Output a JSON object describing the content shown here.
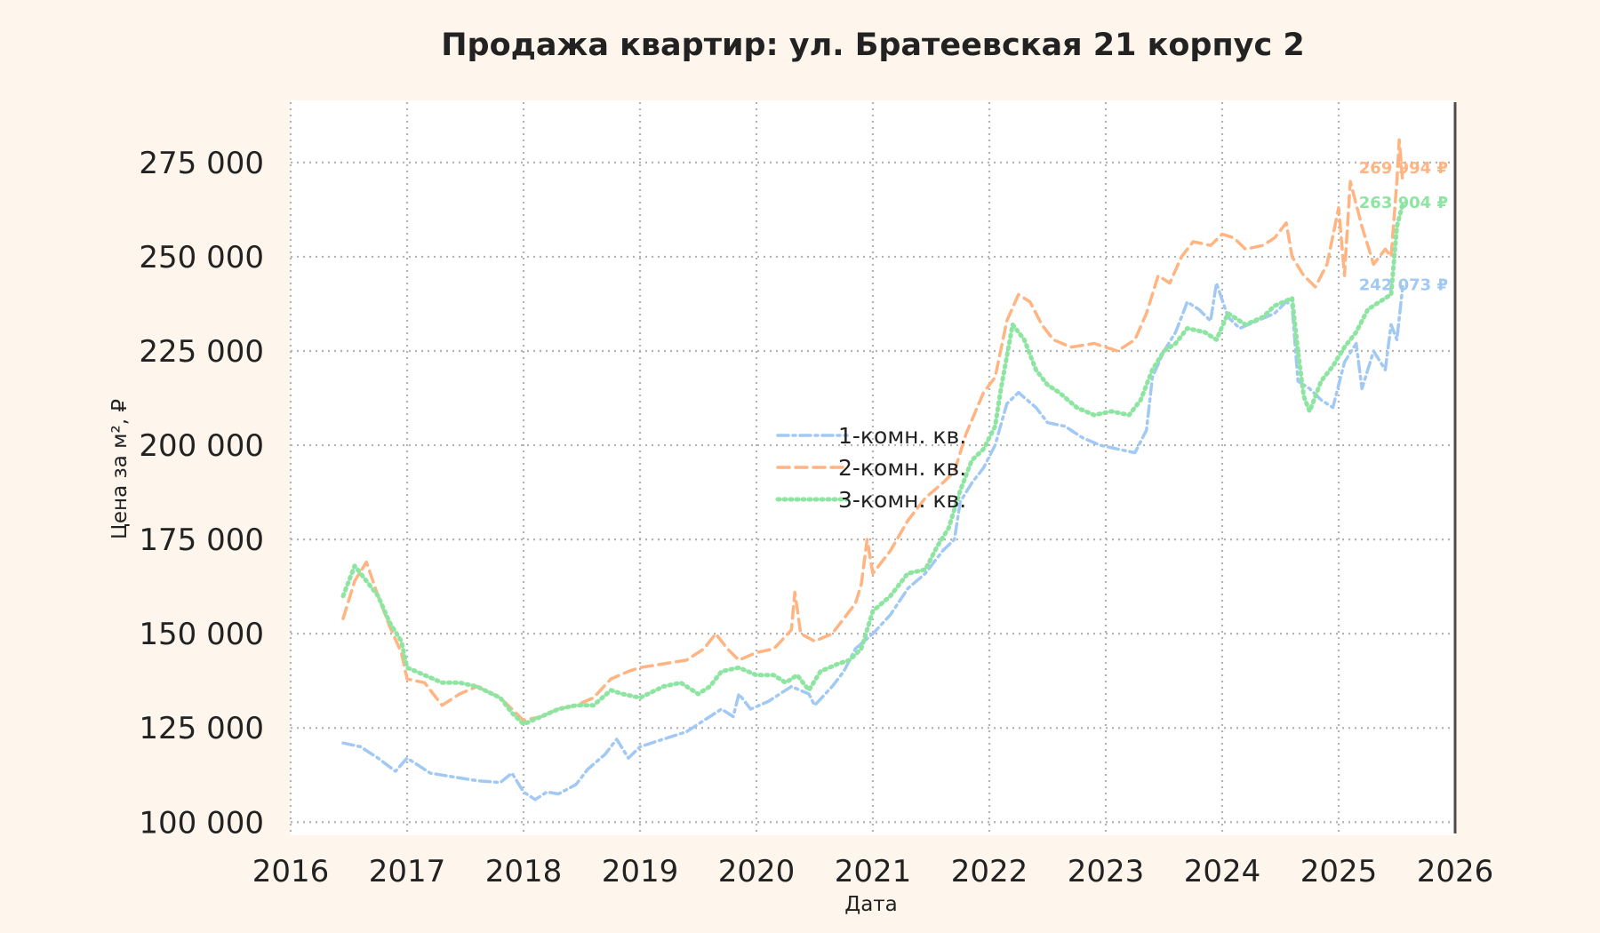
{
  "chart_data": {
    "type": "line",
    "title": "Продажа квартир: ул. Братеевская 21 корпус 2",
    "xlabel": "Дата",
    "ylabel": "Цена за м², ₽",
    "xlim": [
      2016,
      2026
    ],
    "ylim": [
      97000,
      291000
    ],
    "x_ticks": [
      "2016",
      "2017",
      "2018",
      "2019",
      "2020",
      "2021",
      "2022",
      "2023",
      "2024",
      "2025",
      "2026"
    ],
    "y_ticks": [
      "100 000",
      "125 000",
      "150 000",
      "175 000",
      "200 000",
      "225 000",
      "250 000",
      "275 000"
    ],
    "grid": true,
    "legend_position": "center",
    "series": [
      {
        "name": "1-комн. кв.",
        "color": "#a1c9f4",
        "style": "dashdot",
        "end_label": "242 073 ₽",
        "points": [
          [
            2016.45,
            121000
          ],
          [
            2016.6,
            120000
          ],
          [
            2016.75,
            117000
          ],
          [
            2016.9,
            113500
          ],
          [
            2017.0,
            117000
          ],
          [
            2017.2,
            113000
          ],
          [
            2017.4,
            112000
          ],
          [
            2017.6,
            111000
          ],
          [
            2017.8,
            110500
          ],
          [
            2017.9,
            113000
          ],
          [
            2018.0,
            108000
          ],
          [
            2018.1,
            106000
          ],
          [
            2018.2,
            108000
          ],
          [
            2018.3,
            107500
          ],
          [
            2018.45,
            110000
          ],
          [
            2018.55,
            114000
          ],
          [
            2018.7,
            118000
          ],
          [
            2018.8,
            122000
          ],
          [
            2018.9,
            117000
          ],
          [
            2019.0,
            120000
          ],
          [
            2019.2,
            122000
          ],
          [
            2019.4,
            124000
          ],
          [
            2019.55,
            127000
          ],
          [
            2019.7,
            130000
          ],
          [
            2019.8,
            128000
          ],
          [
            2019.85,
            134000
          ],
          [
            2019.95,
            130000
          ],
          [
            2020.1,
            132000
          ],
          [
            2020.3,
            136000
          ],
          [
            2020.45,
            134000
          ],
          [
            2020.5,
            131000
          ],
          [
            2020.65,
            136000
          ],
          [
            2020.75,
            140000
          ],
          [
            2020.85,
            146000
          ],
          [
            2021.0,
            150000
          ],
          [
            2021.15,
            155000
          ],
          [
            2021.3,
            162000
          ],
          [
            2021.45,
            166000
          ],
          [
            2021.6,
            172000
          ],
          [
            2021.7,
            175000
          ],
          [
            2021.75,
            185000
          ],
          [
            2021.85,
            190000
          ],
          [
            2021.95,
            194000
          ],
          [
            2022.05,
            200000
          ],
          [
            2022.15,
            211000
          ],
          [
            2022.25,
            214000
          ],
          [
            2022.4,
            210000
          ],
          [
            2022.5,
            206000
          ],
          [
            2022.65,
            205000
          ],
          [
            2022.8,
            202000
          ],
          [
            2022.95,
            200000
          ],
          [
            2023.1,
            199000
          ],
          [
            2023.25,
            198000
          ],
          [
            2023.35,
            204000
          ],
          [
            2023.4,
            218000
          ],
          [
            2023.5,
            225000
          ],
          [
            2023.6,
            230000
          ],
          [
            2023.7,
            238000
          ],
          [
            2023.8,
            236000
          ],
          [
            2023.9,
            233000
          ],
          [
            2023.95,
            243000
          ],
          [
            2024.05,
            234000
          ],
          [
            2024.15,
            231000
          ],
          [
            2024.3,
            233000
          ],
          [
            2024.45,
            235000
          ],
          [
            2024.55,
            238000
          ],
          [
            2024.6,
            237000
          ],
          [
            2024.65,
            217000
          ],
          [
            2024.75,
            215000
          ],
          [
            2024.85,
            212000
          ],
          [
            2024.95,
            210000
          ],
          [
            2025.05,
            222000
          ],
          [
            2025.15,
            227000
          ],
          [
            2025.2,
            215000
          ],
          [
            2025.3,
            225000
          ],
          [
            2025.4,
            220000
          ],
          [
            2025.45,
            232000
          ],
          [
            2025.5,
            228000
          ],
          [
            2025.55,
            242073
          ]
        ]
      },
      {
        "name": "2-комн. кв.",
        "color": "#ffb482",
        "style": "dashed",
        "end_label": "269 994 ₽",
        "points": [
          [
            2016.45,
            154000
          ],
          [
            2016.55,
            164000
          ],
          [
            2016.65,
            169000
          ],
          [
            2016.75,
            160000
          ],
          [
            2016.85,
            152000
          ],
          [
            2016.95,
            145000
          ],
          [
            2017.0,
            138000
          ],
          [
            2017.15,
            137000
          ],
          [
            2017.3,
            131000
          ],
          [
            2017.45,
            134000
          ],
          [
            2017.6,
            136000
          ],
          [
            2017.8,
            133000
          ],
          [
            2017.9,
            130000
          ],
          [
            2018.0,
            127000
          ],
          [
            2018.15,
            128000
          ],
          [
            2018.3,
            130000
          ],
          [
            2018.45,
            131000
          ],
          [
            2018.6,
            133000
          ],
          [
            2018.75,
            138000
          ],
          [
            2018.9,
            140000
          ],
          [
            2019.0,
            141000
          ],
          [
            2019.2,
            142000
          ],
          [
            2019.4,
            143000
          ],
          [
            2019.55,
            146000
          ],
          [
            2019.65,
            150000
          ],
          [
            2019.75,
            146000
          ],
          [
            2019.85,
            143000
          ],
          [
            2020.0,
            145000
          ],
          [
            2020.15,
            146000
          ],
          [
            2020.3,
            151000
          ],
          [
            2020.33,
            161000
          ],
          [
            2020.38,
            150000
          ],
          [
            2020.5,
            148000
          ],
          [
            2020.65,
            150000
          ],
          [
            2020.75,
            154000
          ],
          [
            2020.85,
            158000
          ],
          [
            2020.9,
            163000
          ],
          [
            2020.95,
            175000
          ],
          [
            2021.0,
            166000
          ],
          [
            2021.15,
            172000
          ],
          [
            2021.3,
            180000
          ],
          [
            2021.45,
            186000
          ],
          [
            2021.6,
            190000
          ],
          [
            2021.7,
            193000
          ],
          [
            2021.8,
            203000
          ],
          [
            2021.95,
            214000
          ],
          [
            2022.05,
            218000
          ],
          [
            2022.15,
            233000
          ],
          [
            2022.25,
            240000
          ],
          [
            2022.35,
            238000
          ],
          [
            2022.45,
            232000
          ],
          [
            2022.55,
            228000
          ],
          [
            2022.7,
            226000
          ],
          [
            2022.9,
            227000
          ],
          [
            2023.1,
            225000
          ],
          [
            2023.25,
            228000
          ],
          [
            2023.35,
            235000
          ],
          [
            2023.45,
            245000
          ],
          [
            2023.55,
            243000
          ],
          [
            2023.65,
            250000
          ],
          [
            2023.75,
            254000
          ],
          [
            2023.9,
            253000
          ],
          [
            2024.0,
            256000
          ],
          [
            2024.1,
            255000
          ],
          [
            2024.2,
            252000
          ],
          [
            2024.35,
            253000
          ],
          [
            2024.45,
            255000
          ],
          [
            2024.55,
            259000
          ],
          [
            2024.6,
            250000
          ],
          [
            2024.7,
            245000
          ],
          [
            2024.8,
            242000
          ],
          [
            2024.9,
            248000
          ],
          [
            2025.0,
            263000
          ],
          [
            2025.05,
            245000
          ],
          [
            2025.1,
            270000
          ],
          [
            2025.2,
            258000
          ],
          [
            2025.3,
            248000
          ],
          [
            2025.4,
            252000
          ],
          [
            2025.45,
            250000
          ],
          [
            2025.5,
            270000
          ],
          [
            2025.52,
            281000
          ],
          [
            2025.55,
            269994
          ]
        ]
      },
      {
        "name": "3-комн. кв.",
        "color": "#8de5a1",
        "style": "dotted",
        "end_label": "263 904 ₽",
        "points": [
          [
            2016.45,
            160000
          ],
          [
            2016.55,
            168000
          ],
          [
            2016.65,
            164000
          ],
          [
            2016.75,
            160000
          ],
          [
            2016.85,
            153000
          ],
          [
            2016.95,
            148000
          ],
          [
            2017.0,
            141000
          ],
          [
            2017.15,
            139000
          ],
          [
            2017.3,
            137000
          ],
          [
            2017.45,
            137000
          ],
          [
            2017.6,
            136000
          ],
          [
            2017.8,
            133000
          ],
          [
            2017.9,
            129000
          ],
          [
            2018.0,
            126000
          ],
          [
            2018.15,
            128000
          ],
          [
            2018.3,
            130000
          ],
          [
            2018.45,
            131000
          ],
          [
            2018.6,
            131000
          ],
          [
            2018.75,
            135000
          ],
          [
            2018.85,
            134000
          ],
          [
            2019.0,
            133000
          ],
          [
            2019.2,
            136000
          ],
          [
            2019.35,
            137000
          ],
          [
            2019.5,
            134000
          ],
          [
            2019.6,
            136000
          ],
          [
            2019.7,
            140000
          ],
          [
            2019.85,
            141000
          ],
          [
            2020.0,
            139000
          ],
          [
            2020.15,
            139000
          ],
          [
            2020.25,
            137000
          ],
          [
            2020.35,
            139000
          ],
          [
            2020.45,
            135000
          ],
          [
            2020.55,
            140000
          ],
          [
            2020.7,
            142000
          ],
          [
            2020.8,
            143000
          ],
          [
            2020.9,
            146000
          ],
          [
            2021.0,
            156000
          ],
          [
            2021.15,
            160000
          ],
          [
            2021.3,
            166000
          ],
          [
            2021.45,
            167000
          ],
          [
            2021.55,
            173000
          ],
          [
            2021.65,
            178000
          ],
          [
            2021.75,
            188000
          ],
          [
            2021.85,
            196000
          ],
          [
            2021.95,
            199000
          ],
          [
            2022.05,
            205000
          ],
          [
            2022.1,
            215000
          ],
          [
            2022.2,
            232000
          ],
          [
            2022.3,
            228000
          ],
          [
            2022.4,
            220000
          ],
          [
            2022.5,
            216000
          ],
          [
            2022.6,
            214000
          ],
          [
            2022.75,
            210000
          ],
          [
            2022.9,
            208000
          ],
          [
            2023.05,
            209000
          ],
          [
            2023.2,
            208000
          ],
          [
            2023.3,
            212000
          ],
          [
            2023.4,
            220000
          ],
          [
            2023.5,
            225000
          ],
          [
            2023.6,
            227000
          ],
          [
            2023.7,
            231000
          ],
          [
            2023.85,
            230000
          ],
          [
            2023.95,
            228000
          ],
          [
            2024.05,
            235000
          ],
          [
            2024.2,
            232000
          ],
          [
            2024.35,
            234000
          ],
          [
            2024.45,
            237000
          ],
          [
            2024.6,
            239000
          ],
          [
            2024.65,
            225000
          ],
          [
            2024.7,
            213000
          ],
          [
            2024.75,
            209000
          ],
          [
            2024.85,
            217000
          ],
          [
            2024.95,
            221000
          ],
          [
            2025.05,
            226000
          ],
          [
            2025.15,
            230000
          ],
          [
            2025.25,
            236000
          ],
          [
            2025.35,
            238000
          ],
          [
            2025.45,
            240000
          ],
          [
            2025.5,
            258000
          ],
          [
            2025.55,
            263904
          ]
        ]
      }
    ]
  }
}
